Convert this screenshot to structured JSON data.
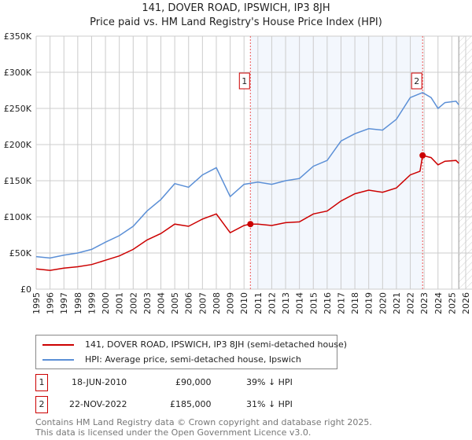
{
  "chart_data": {
    "type": "line",
    "title": "141, DOVER ROAD, IPSWICH, IP3 8JH",
    "subtitle": "Price paid vs. HM Land Registry's House Price Index (HPI)",
    "xlim": [
      1995,
      2026
    ],
    "ylim": [
      0,
      350000
    ],
    "y_ticks": [
      {
        "v": 0,
        "label": "£0"
      },
      {
        "v": 50000,
        "label": "£50K"
      },
      {
        "v": 100000,
        "label": "£100K"
      },
      {
        "v": 150000,
        "label": "£150K"
      },
      {
        "v": 200000,
        "label": "£200K"
      },
      {
        "v": 250000,
        "label": "£250K"
      },
      {
        "v": 300000,
        "label": "£300K"
      },
      {
        "v": 350000,
        "label": "£350K"
      }
    ],
    "x_ticks": [
      "1995",
      "1996",
      "1997",
      "1998",
      "1999",
      "2000",
      "2001",
      "2002",
      "2003",
      "2004",
      "2005",
      "2006",
      "2007",
      "2008",
      "2009",
      "2010",
      "2011",
      "2012",
      "2013",
      "2014",
      "2015",
      "2016",
      "2017",
      "2018",
      "2019",
      "2020",
      "2021",
      "2022",
      "2023",
      "2024",
      "2025",
      "2026"
    ],
    "grid": true,
    "shaded_range": [
      2010.46,
      2022.89
    ],
    "forecast_hatch_from": 2025.5,
    "series": [
      {
        "name": "141, DOVER ROAD, IPSWICH, IP3 8JH (semi-detached house)",
        "color": "#cc0000",
        "x": [
          1995,
          1996,
          1997,
          1998,
          1999,
          2000,
          2001,
          2002,
          2003,
          2004,
          2005,
          2006,
          2007,
          2008,
          2009,
          2010,
          2010.46,
          2011,
          2012,
          2013,
          2014,
          2015,
          2016,
          2017,
          2018,
          2019,
          2020,
          2021,
          2022,
          2022.7,
          2022.89,
          2023.5,
          2024,
          2024.5,
          2025.3,
          2025.5
        ],
        "y": [
          28000,
          26000,
          29000,
          31000,
          34000,
          40000,
          46000,
          55000,
          68000,
          77000,
          90000,
          87000,
          97000,
          104000,
          78000,
          88000,
          90000,
          90000,
          88000,
          92000,
          93000,
          104000,
          108000,
          122000,
          132000,
          137000,
          134000,
          140000,
          158000,
          163000,
          185000,
          182000,
          172000,
          177000,
          178000,
          174000
        ]
      },
      {
        "name": "HPI: Average price, semi-detached house, Ipswich",
        "color": "#5b8fd6",
        "x": [
          1995,
          1996,
          1997,
          1998,
          1999,
          2000,
          2001,
          2002,
          2003,
          2004,
          2005,
          2006,
          2007,
          2008,
          2009,
          2010,
          2011,
          2012,
          2013,
          2014,
          2015,
          2016,
          2017,
          2018,
          2019,
          2020,
          2021,
          2022,
          2022.89,
          2023.5,
          2024,
          2024.5,
          2025.3,
          2025.5
        ],
        "y": [
          45000,
          43000,
          47000,
          50000,
          55000,
          65000,
          74000,
          87000,
          108000,
          124000,
          146000,
          141000,
          158000,
          168000,
          128000,
          145000,
          148000,
          145000,
          150000,
          153000,
          170000,
          178000,
          205000,
          215000,
          222000,
          220000,
          235000,
          265000,
          272000,
          265000,
          250000,
          258000,
          260000,
          255000
        ]
      }
    ],
    "annotations": [
      {
        "label": "1",
        "x": 2010.46,
        "y": 90000
      },
      {
        "label": "2",
        "x": 2022.89,
        "y": 185000
      }
    ]
  },
  "legend": {
    "red": "141, DOVER ROAD, IPSWICH, IP3 8JH (semi-detached house)",
    "blue": "HPI: Average price, semi-detached house, Ipswich"
  },
  "transactions": [
    {
      "num": "1",
      "date": "18-JUN-2010",
      "price": "£90,000",
      "hpi": "39% ↓ HPI"
    },
    {
      "num": "2",
      "date": "22-NOV-2022",
      "price": "£185,000",
      "hpi": "31% ↓ HPI"
    }
  ],
  "footer": {
    "line1": "Contains HM Land Registry data © Crown copyright and database right 2025.",
    "line2": "This data is licensed under the Open Government Licence v3.0."
  }
}
